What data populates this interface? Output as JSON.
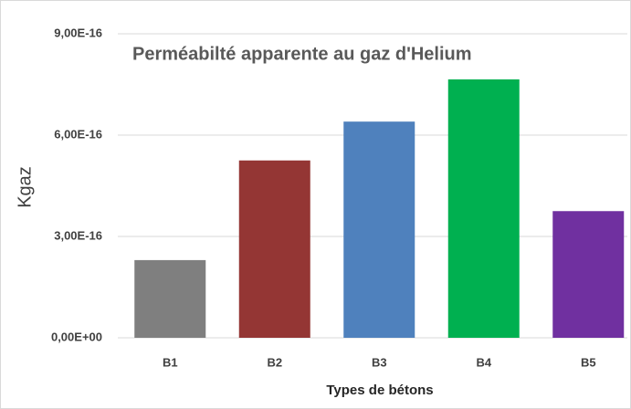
{
  "chart_data": {
    "type": "bar",
    "title": "Perméabilté apparente au gaz d'Helium",
    "y_label": "Kgaz",
    "x_label": "Types de bétons",
    "categories": [
      "B1",
      "B2",
      "B3",
      "B4",
      "B5"
    ],
    "values": [
      2.3e-16,
      5.25e-16,
      6.4e-16,
      7.65e-16,
      3.75e-16
    ],
    "colors": [
      "#7f7f7f",
      "#943634",
      "#4f81bd",
      "#00b050",
      "#7030a0"
    ],
    "ylim": [
      0,
      9e-16
    ],
    "yticks": [
      {
        "value": 0,
        "label": "0,00E+00"
      },
      {
        "value": 3e-16,
        "label": "3,00E-16"
      },
      {
        "value": 6e-16,
        "label": "6,00E-16"
      },
      {
        "value": 9e-16,
        "label": "9,00E-16"
      }
    ],
    "grid": true
  }
}
